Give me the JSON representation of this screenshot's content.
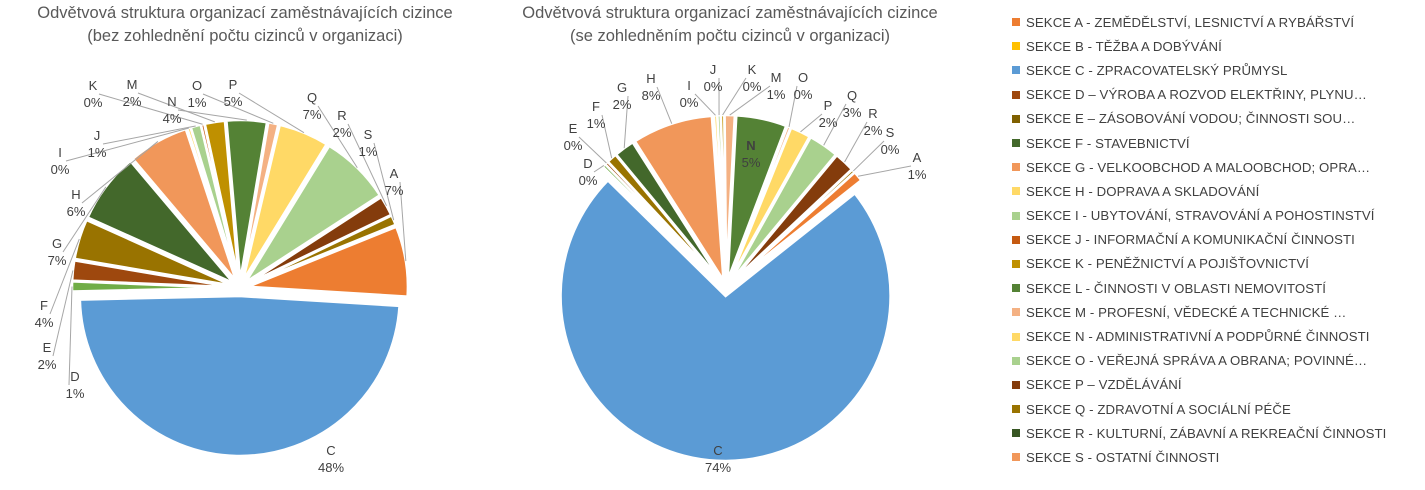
{
  "colors": {
    "A": "#ED7D31",
    "B": "#FFC000",
    "C": "#5B9BD5",
    "D": "#9E480E",
    "E": "#997300",
    "F": "#997300",
    "G": "#43682B",
    "H": "#F1975A",
    "I": "#A9D18E",
    "J": "#C55A11",
    "K": "#BF9000",
    "L": "#548235",
    "M": "#F4B183",
    "N": "#548235",
    "O": "#FFD966",
    "P": "#A9D18E",
    "Q": "#A9D18E",
    "R": "#843C0C",
    "S": "#7F6000"
  },
  "legend": [
    {
      "key": "A",
      "label": "SEKCE A - ZEMĚDĚLSTVÍ, LESNICTVÍ A RYBÁŘSTVÍ",
      "color": "#ED7D31"
    },
    {
      "key": "B",
      "label": "SEKCE B - TĚŽBA A DOBÝVÁNÍ",
      "color": "#FFC000"
    },
    {
      "key": "C",
      "label": "SEKCE C - ZPRACOVATELSKÝ PRŮMYSL",
      "color": "#5B9BD5"
    },
    {
      "key": "D",
      "label": "SEKCE D – VÝROBA A ROZVOD ELEKTŘINY, PLYNU…",
      "color": "#9E480E"
    },
    {
      "key": "E",
      "label": "SEKCE E – ZÁSOBOVÁNÍ VODOU; ČINNOSTI SOU…",
      "color": "#7F6000"
    },
    {
      "key": "F",
      "label": "SEKCE F - STAVEBNICTVÍ",
      "color": "#43682B"
    },
    {
      "key": "G",
      "label": "SEKCE G - VELKOOBCHOD A MALOOBCHOD; OPRA…",
      "color": "#F1975A"
    },
    {
      "key": "H",
      "label": "SEKCE H - DOPRAVA A SKLADOVÁNÍ",
      "color": "#FFD966"
    },
    {
      "key": "I",
      "label": "SEKCE I - UBYTOVÁNÍ, STRAVOVÁNÍ A POHOSTINSTVÍ",
      "color": "#A9D18E"
    },
    {
      "key": "J",
      "label": "SEKCE J - INFORMAČNÍ A KOMUNIKAČNÍ ČINNOSTI",
      "color": "#C55A11"
    },
    {
      "key": "K",
      "label": "SEKCE K - PENĚŽNICTVÍ A POJIŠŤOVNICTVÍ",
      "color": "#BF9000"
    },
    {
      "key": "L",
      "label": "SEKCE L - ČINNOSTI V OBLASTI NEMOVITOSTÍ",
      "color": "#548235"
    },
    {
      "key": "M",
      "label": "SEKCE M - PROFESNÍ, VĚDECKÉ A TECHNICKÉ …",
      "color": "#F4B183"
    },
    {
      "key": "N",
      "label": "SEKCE N - ADMINISTRATIVNÍ A PODPŮRNÉ ČINNOSTI",
      "color": "#FFD966"
    },
    {
      "key": "O",
      "label": "SEKCE O - VEŘEJNÁ SPRÁVA A OBRANA; POVINNÉ…",
      "color": "#A9D18E"
    },
    {
      "key": "P",
      "label": "SEKCE P – VZDĚLÁVÁNÍ",
      "color": "#843C0C"
    },
    {
      "key": "Q",
      "label": "SEKCE Q - ZDRAVOTNÍ A SOCIÁLNÍ PÉČE",
      "color": "#997300"
    },
    {
      "key": "R",
      "label": "SEKCE R - KULTURNÍ, ZÁBAVNÍ A REKREAČNÍ ČINNOSTI",
      "color": "#375623"
    },
    {
      "key": "S",
      "label": "SEKCE S - OSTATNÍ ČINNOSTI",
      "color": "#F1975A"
    }
  ],
  "chart_data": [
    {
      "type": "pie",
      "title": "Odvětvová struktura organizací zaměstnávajících cizince",
      "subtitle": "(bez zohlednění počtu cizinců v organizaci)",
      "slices": [
        {
          "label": "A",
          "value": 7,
          "display": "7%",
          "color": "#ED7D31"
        },
        {
          "label": "C",
          "value": 48,
          "display": "48%",
          "color": "#5B9BD5"
        },
        {
          "label": "D",
          "value": 1,
          "display": "1%",
          "color": "#70AD47"
        },
        {
          "label": "E",
          "value": 2,
          "display": "2%",
          "color": "#9E480E"
        },
        {
          "label": "F",
          "value": 4,
          "display": "4%",
          "color": "#997300"
        },
        {
          "label": "G",
          "value": 7,
          "display": "7%",
          "color": "#43682B"
        },
        {
          "label": "H",
          "value": 6,
          "display": "6%",
          "color": "#F1975A"
        },
        {
          "label": "I",
          "value": 0,
          "display": "0%",
          "color": "#FFD966"
        },
        {
          "label": "J",
          "value": 1,
          "display": "1%",
          "color": "#A9D18E"
        },
        {
          "label": "K",
          "value": 0,
          "display": "0%",
          "color": "#C55A11"
        },
        {
          "label": "M",
          "value": 2,
          "display": "2%",
          "color": "#BF9000"
        },
        {
          "label": "N",
          "value": 4,
          "display": "4%",
          "color": "#548235"
        },
        {
          "label": "O",
          "value": 1,
          "display": "1%",
          "color": "#F4B183"
        },
        {
          "label": "P",
          "value": 5,
          "display": "5%",
          "color": "#FFD966"
        },
        {
          "label": "Q",
          "value": 7,
          "display": "7%",
          "color": "#A9D18E"
        },
        {
          "label": "R",
          "value": 2,
          "display": "2%",
          "color": "#843C0C"
        },
        {
          "label": "S",
          "value": 1,
          "display": "1%",
          "color": "#997300"
        }
      ]
    },
    {
      "type": "pie",
      "title": "Odvětvová struktura organizací zaměstnávajících cizince",
      "subtitle": "(se zohledněním počtu cizinců v organizaci)",
      "slices": [
        {
          "label": "A",
          "value": 1,
          "display": "1%",
          "color": "#ED7D31"
        },
        {
          "label": "C",
          "value": 74,
          "display": "74%",
          "color": "#5B9BD5"
        },
        {
          "label": "D",
          "value": 0,
          "display": "0%",
          "color": "#70AD47"
        },
        {
          "label": "E",
          "value": 0,
          "display": "0%",
          "color": "#9E480E"
        },
        {
          "label": "F",
          "value": 1,
          "display": "1%",
          "color": "#997300"
        },
        {
          "label": "G",
          "value": 2,
          "display": "2%",
          "color": "#43682B"
        },
        {
          "label": "H",
          "value": 8,
          "display": "8%",
          "color": "#F1975A"
        },
        {
          "label": "I",
          "value": 0,
          "display": "0%",
          "color": "#FFD966"
        },
        {
          "label": "J",
          "value": 0,
          "display": "0%",
          "color": "#A9D18E"
        },
        {
          "label": "K",
          "value": 0,
          "display": "0%",
          "color": "#BF9000"
        },
        {
          "label": "M",
          "value": 1,
          "display": "1%",
          "color": "#F4B183"
        },
        {
          "label": "N",
          "value": 5,
          "display": "5%",
          "color": "#548235"
        },
        {
          "label": "O",
          "value": 0,
          "display": "0%",
          "color": "#F4B183"
        },
        {
          "label": "P",
          "value": 2,
          "display": "2%",
          "color": "#FFD966"
        },
        {
          "label": "Q",
          "value": 3,
          "display": "3%",
          "color": "#A9D18E"
        },
        {
          "label": "R",
          "value": 2,
          "display": "2%",
          "color": "#843C0C"
        },
        {
          "label": "S",
          "value": 0,
          "display": "0%",
          "color": "#997300"
        }
      ]
    }
  ]
}
